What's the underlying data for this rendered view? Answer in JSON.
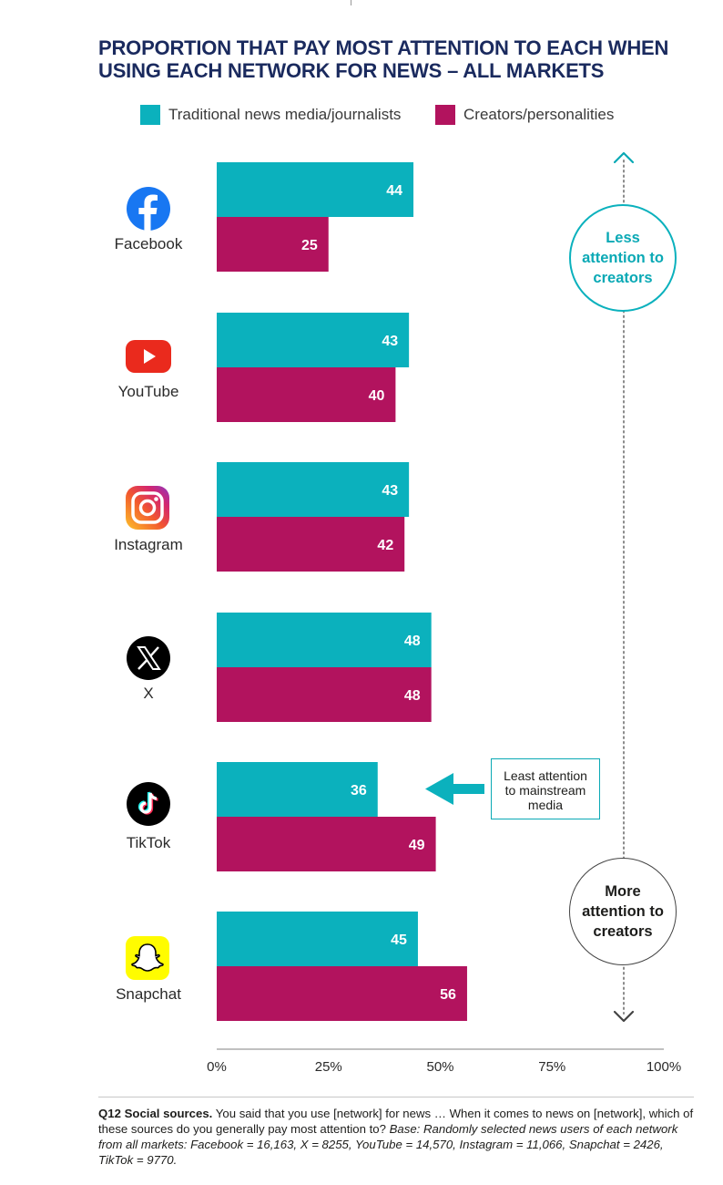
{
  "title": "PROPORTION THAT PAY MOST ATTENTION TO EACH WHEN\nUSING EACH NETWORK FOR NEWS – ALL MARKETS",
  "colors": {
    "traditional": "#0bb1bd",
    "creators": "#b2135e",
    "title": "#1a2a5e",
    "axis": "#9a9a9a"
  },
  "legend": {
    "traditional": "Traditional news media/journalists",
    "creators": "Creators/personalities"
  },
  "networks": [
    {
      "name": "Facebook",
      "icon": "facebook-icon"
    },
    {
      "name": "YouTube",
      "icon": "youtube-icon"
    },
    {
      "name": "Instagram",
      "icon": "instagram-icon"
    },
    {
      "name": "X",
      "icon": "x-icon"
    },
    {
      "name": "TikTok",
      "icon": "tiktok-icon"
    },
    {
      "name": "Snapchat",
      "icon": "snapchat-icon"
    }
  ],
  "chart_data": {
    "type": "bar",
    "orientation": "horizontal",
    "categories": [
      "Facebook",
      "YouTube",
      "Instagram",
      "X",
      "TikTok",
      "Snapchat"
    ],
    "series": [
      {
        "name": "Traditional news media/journalists",
        "values": [
          44,
          43,
          43,
          48,
          36,
          45
        ]
      },
      {
        "name": "Creators/personalities",
        "values": [
          25,
          40,
          42,
          48,
          49,
          56
        ]
      }
    ],
    "xlim": [
      0,
      100
    ],
    "xticks": [
      "0%",
      "25%",
      "50%",
      "75%",
      "100%"
    ],
    "grid": false,
    "legend_position": "top"
  },
  "annotations": {
    "least_attention": "Least attention\nto mainstream\nmedia",
    "less_creators": "Less\nattention to\ncreators",
    "more_creators": "More\nattention to\ncreators"
  },
  "footnote": {
    "label": "Q12 Social sources.",
    "question": " You said that you use [network] for news … When it comes to news on [network], which of these sources do you generally pay most attention to? ",
    "base": "Base: Randomly selected news users of each network from all markets: Facebook = 16,163, X = 8255, YouTube = 14,570, Instagram = 11,066, Snapchat = 2426, TikTok = 9770."
  }
}
